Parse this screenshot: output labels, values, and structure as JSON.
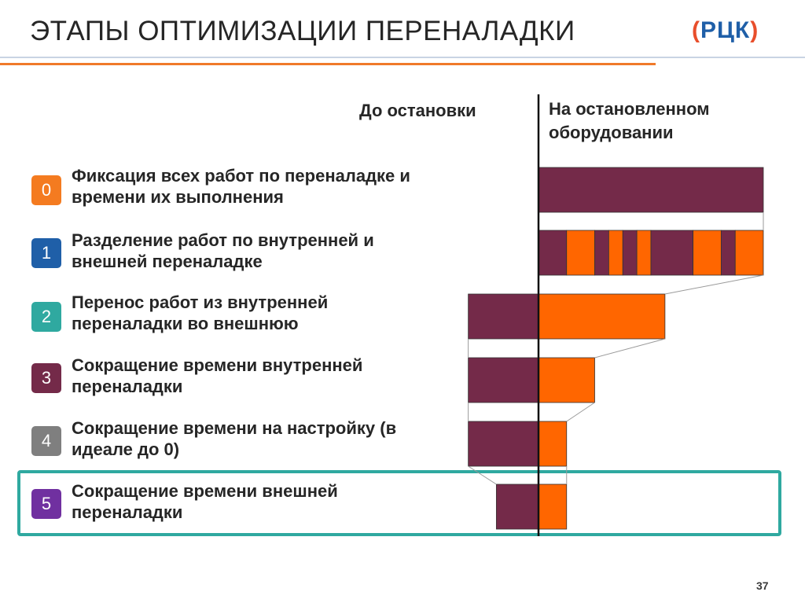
{
  "title": "ЭТАПЫ ОПТИМИЗАЦИИ ПЕРЕНАЛАДКИ",
  "logo": {
    "left": "(",
    "text": "РЦК",
    "right": ")"
  },
  "columns": {
    "before_stop": "До остановки",
    "on_stopped": "На остановленном оборудовании"
  },
  "colors": {
    "internal": "#742A49",
    "external": "#FF6600",
    "highlight": "#2FA9A0",
    "accent_line": "#F07A2A"
  },
  "steps": [
    {
      "num": "0",
      "badge_color": "#F47B20",
      "line1": "Фиксация всех работ по переналадке и",
      "line2": "времени их выполнения"
    },
    {
      "num": "1",
      "badge_color": "#1F5FA8",
      "line1": "Разделение работ по внутренней и",
      "line2": "внешней переналадке"
    },
    {
      "num": "2",
      "badge_color": "#2FA9A0",
      "line1": "Перенос работ из внутренней",
      "line2": "переналадки во внешнюю"
    },
    {
      "num": "3",
      "badge_color": "#742A49",
      "line1": "Сокращение времени внутренней",
      "line2": "переналадки"
    },
    {
      "num": "4",
      "badge_color": "#7F7F7F",
      "line1": "Сокращение времени на настройку (в",
      "line2": "идеале до 0)"
    },
    {
      "num": "5",
      "badge_color": "#7030A0",
      "line1": "Сокращение времени внешней",
      "line2": "переналадки"
    }
  ],
  "chart_data": {
    "type": "diagram",
    "unit": "relative duration",
    "timeline_zero": "stop moment",
    "rows": [
      {
        "step": 0,
        "before": [],
        "after": [
          {
            "t": "internal",
            "d": 8
          }
        ]
      },
      {
        "step": 1,
        "before": [],
        "after": [
          {
            "t": "internal",
            "d": 1
          },
          {
            "t": "external",
            "d": 1
          },
          {
            "t": "internal",
            "d": 0.5
          },
          {
            "t": "external",
            "d": 0.5
          },
          {
            "t": "internal",
            "d": 0.5
          },
          {
            "t": "external",
            "d": 0.5
          },
          {
            "t": "internal",
            "d": 1.5
          },
          {
            "t": "external",
            "d": 1
          },
          {
            "t": "internal",
            "d": 0.5
          },
          {
            "t": "external",
            "d": 1
          }
        ]
      },
      {
        "step": 2,
        "before": [
          {
            "t": "internal",
            "d": 2.5
          }
        ],
        "after": [
          {
            "t": "external",
            "d": 4.5
          }
        ]
      },
      {
        "step": 3,
        "before": [
          {
            "t": "internal",
            "d": 2.5
          }
        ],
        "after": [
          {
            "t": "external",
            "d": 2
          }
        ]
      },
      {
        "step": 4,
        "before": [
          {
            "t": "internal",
            "d": 2.5
          }
        ],
        "after": [
          {
            "t": "external",
            "d": 1
          }
        ]
      },
      {
        "step": 5,
        "before": [
          {
            "t": "internal",
            "d": 1.5
          }
        ],
        "after": [
          {
            "t": "external",
            "d": 1
          }
        ]
      }
    ]
  },
  "page_number": "37"
}
